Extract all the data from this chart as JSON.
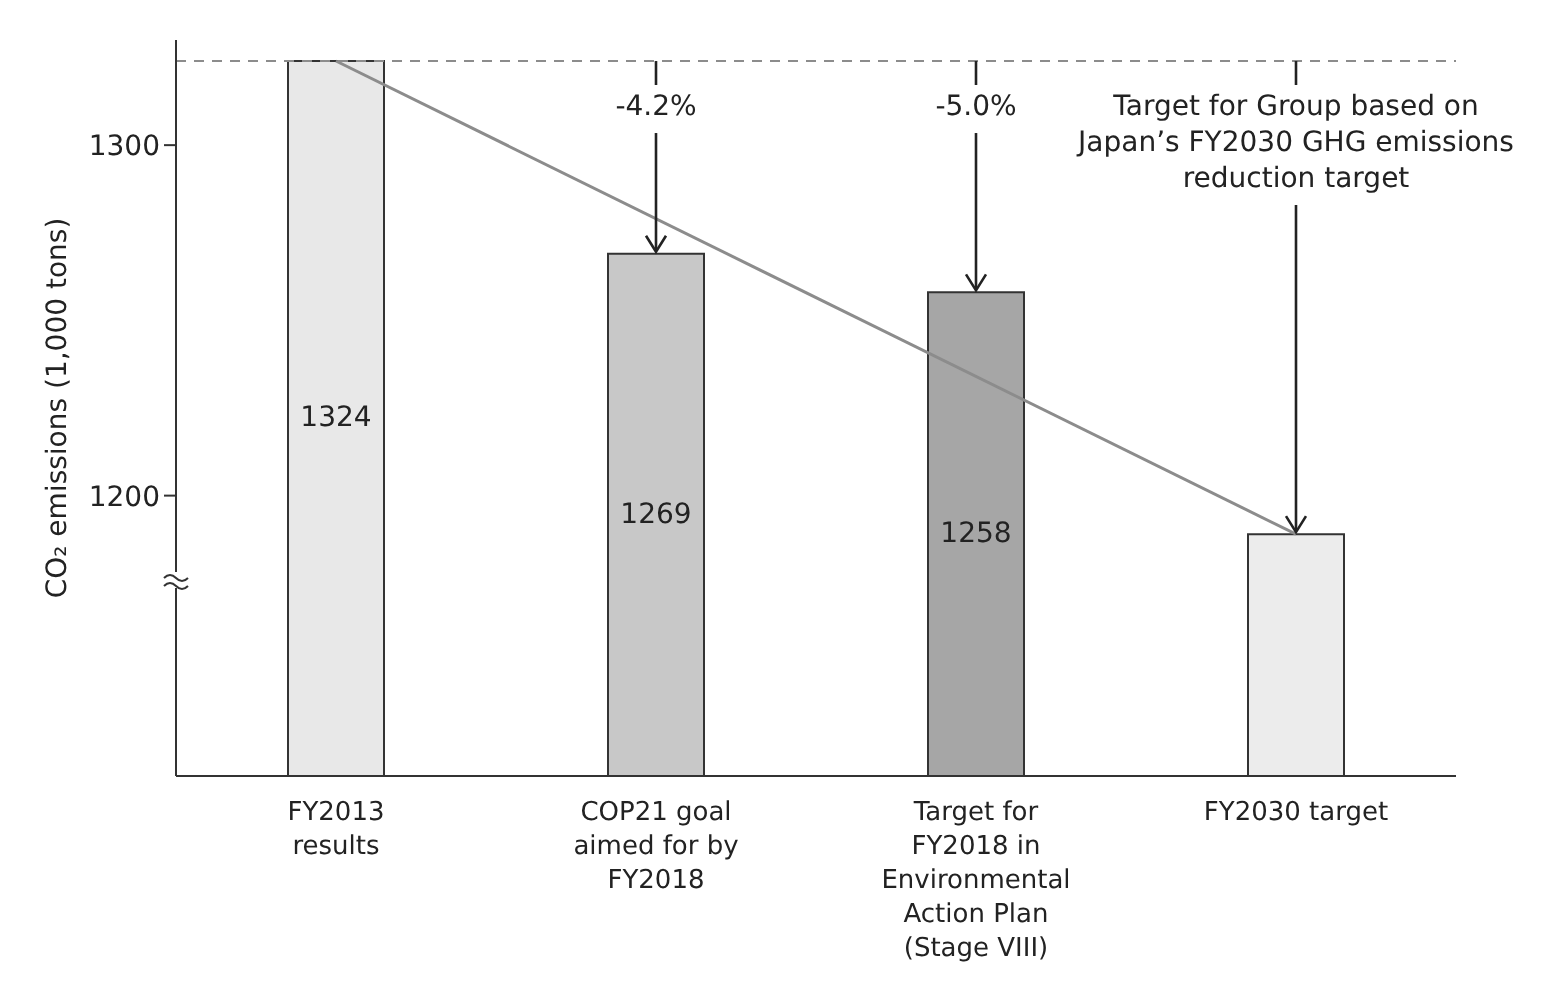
{
  "chart_data": {
    "type": "bar",
    "ylabel": "CO₂ emissions (1,000 tons)",
    "categories": [
      "FY2013 results",
      "COP21 goal aimed for by FY2018",
      "Target for FY2018 in Environmental Action Plan (Stage VIII)",
      "FY2030 target"
    ],
    "series": [
      {
        "values": [
          1324,
          1269,
          1258,
          1189
        ],
        "colors": [
          "#e8e8e8",
          "#c8c8c8",
          "#a6a6a6",
          "#ececec"
        ],
        "value_labels": [
          "1324",
          "1269",
          "1258",
          null
        ]
      },
      {
        "type": "line",
        "color": "#8c8c8c",
        "values": [
          1324,
          null,
          null,
          1189
        ]
      }
    ],
    "ylim": [
      1120,
      1330
    ],
    "yticks": [
      1200,
      1300
    ],
    "ref_lines": [
      {
        "axis": "y",
        "value": 1324,
        "color": "#8c8c8c",
        "line_style": "dashed"
      }
    ],
    "annotations": [
      {
        "text": "-4.2%",
        "x": "COP21 goal aimed for by FY2018",
        "y": 1269
      },
      {
        "text": "-5.0%",
        "x": "Target for FY2018 in Environmental Action Plan (Stage VIII)",
        "y": 1258
      },
      {
        "text": "Target for Group based on Japan’s FY2030 GHG emissions reduction target",
        "x": "FY2030 target",
        "y": 1189
      }
    ]
  }
}
